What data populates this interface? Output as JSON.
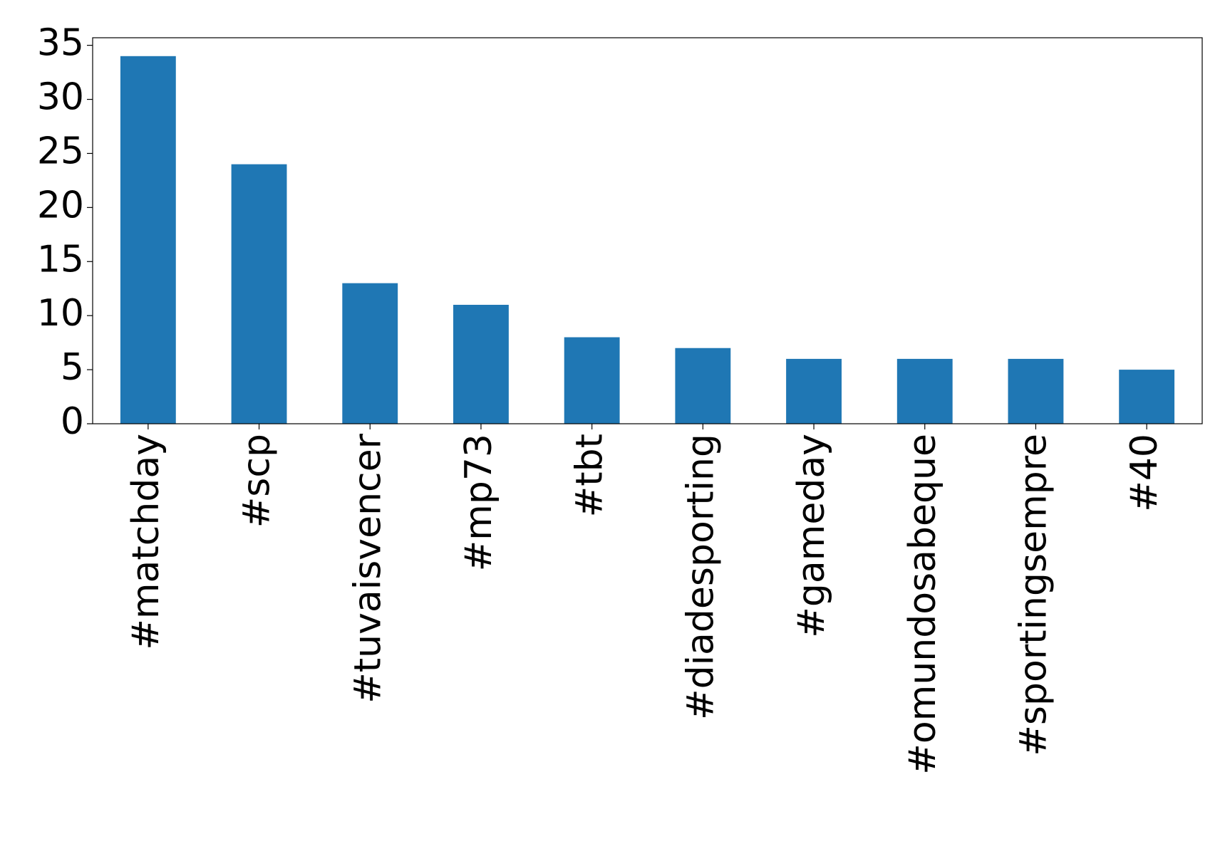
{
  "chart_data": {
    "type": "bar",
    "categories": [
      "#matchday",
      "#scp",
      "#tuvaisvencer",
      "#mp73",
      "#tbt",
      "#diadesporting",
      "#gameday",
      "#omundosabeque",
      "#sportingsempre",
      "#40"
    ],
    "values": [
      34,
      24,
      13,
      11,
      8,
      7,
      6,
      6,
      6,
      5
    ],
    "color": "#1f77b4",
    "ylim": [
      0,
      35.7
    ],
    "yticks": [
      0,
      5,
      10,
      15,
      20,
      25,
      30,
      35
    ],
    "grid": false
  }
}
